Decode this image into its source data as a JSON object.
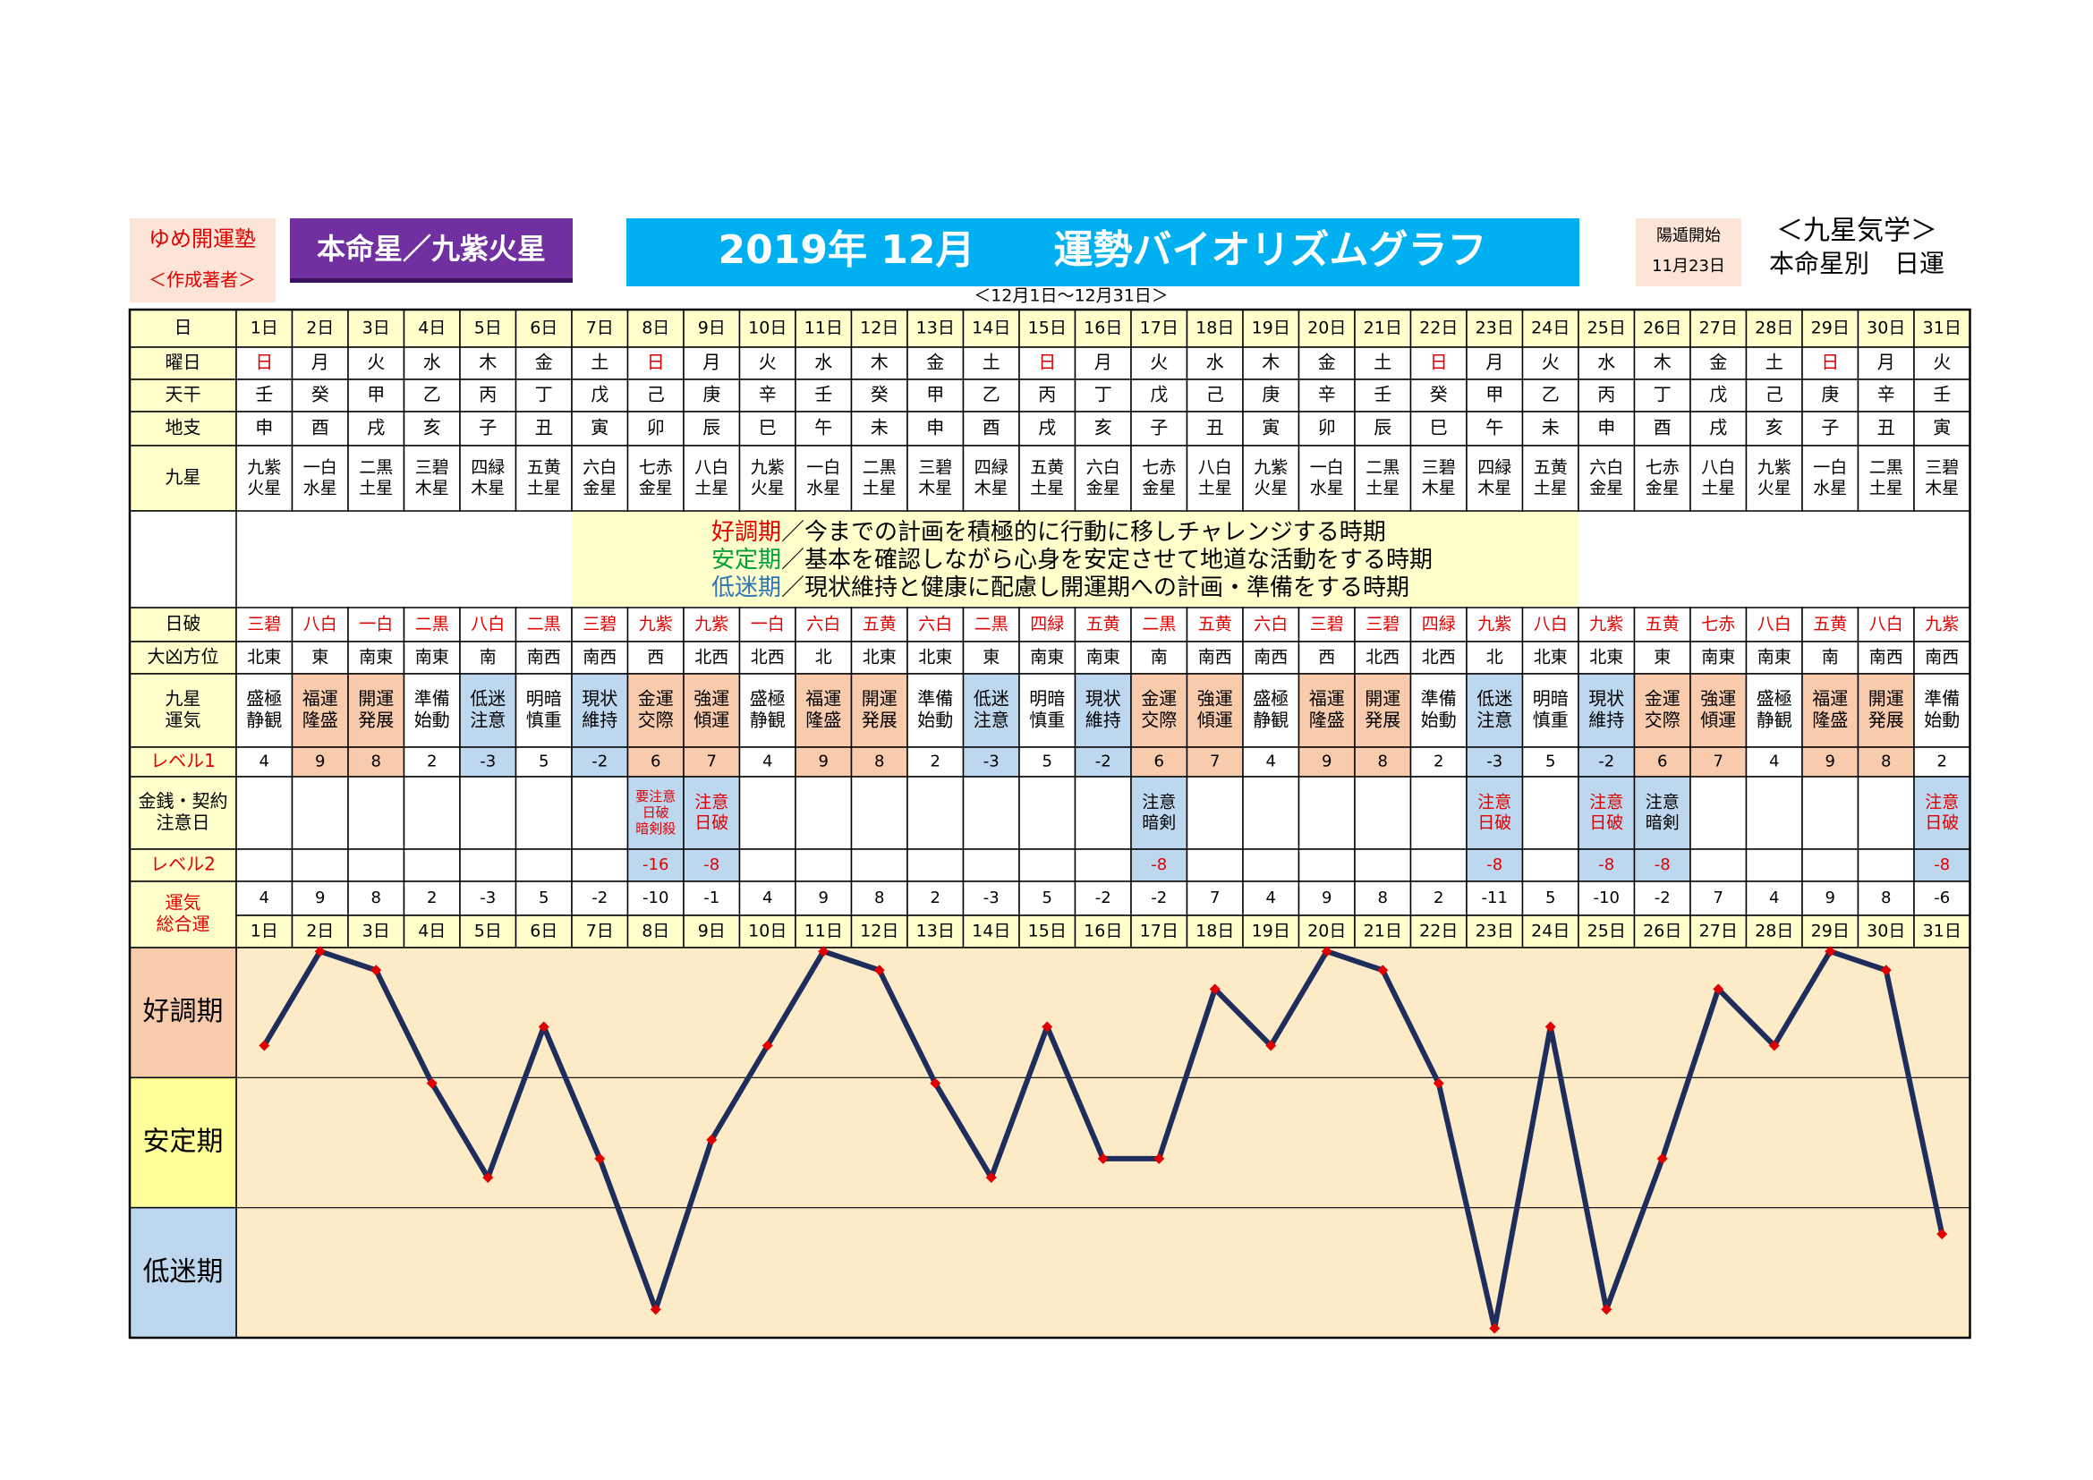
{
  "header": {
    "school": "ゆめ開運塾",
    "author": "＜作成著者＞",
    "star": "本命星／九紫火星",
    "title": "2019年 12月　　運勢バイオリズムグラフ",
    "yoton_label": "陽遁開始",
    "yoton_date": "11月23日",
    "system": "＜九星気学＞",
    "system_sub": "本命星別　日運",
    "period": "＜12月1日～12月31日＞"
  },
  "table": {
    "row_labels": [
      [
        "日"
      ],
      [
        "曜日"
      ],
      [
        "天干"
      ],
      [
        "地支"
      ],
      [
        "九星"
      ],
      [
        "日破"
      ],
      [
        "大凶方位"
      ],
      [
        "九星",
        "運気"
      ],
      [
        "レベル1"
      ],
      [
        "金銭・契約",
        "注意日"
      ],
      [
        "レベル2"
      ],
      [
        "運気",
        "総合運"
      ]
    ],
    "weekdays": [
      "日",
      "月",
      "火",
      "水",
      "木",
      "金",
      "土",
      "日",
      "月",
      "火",
      "水",
      "木",
      "金",
      "土",
      "日",
      "月",
      "火",
      "水",
      "木",
      "金",
      "土",
      "日",
      "月",
      "火",
      "水",
      "木",
      "金",
      "土",
      "日",
      "月",
      "火"
    ],
    "red_weekday": "日",
    "stems": [
      "壬",
      "癸",
      "甲",
      "乙",
      "丙",
      "丁",
      "戊",
      "己",
      "庚",
      "辛",
      "壬",
      "癸",
      "甲",
      "乙",
      "丙",
      "丁",
      "戊",
      "己",
      "庚",
      "辛",
      "壬",
      "癸",
      "甲",
      "乙",
      "丙",
      "丁",
      "戊",
      "己",
      "庚",
      "辛",
      "壬"
    ],
    "branches": [
      "申",
      "酉",
      "戌",
      "亥",
      "子",
      "丑",
      "寅",
      "卯",
      "辰",
      "巳",
      "午",
      "未",
      "申",
      "酉",
      "戌",
      "亥",
      "子",
      "丑",
      "寅",
      "卯",
      "辰",
      "巳",
      "午",
      "未",
      "申",
      "酉",
      "戌",
      "亥",
      "子",
      "丑",
      "寅"
    ],
    "stars": [
      [
        "九紫",
        "火星"
      ],
      [
        "一白",
        "水星"
      ],
      [
        "二黒",
        "土星"
      ],
      [
        "三碧",
        "木星"
      ],
      [
        "四緑",
        "木星"
      ],
      [
        "五黄",
        "土星"
      ],
      [
        "六白",
        "金星"
      ],
      [
        "七赤",
        "金星"
      ],
      [
        "八白",
        "土星"
      ],
      [
        "九紫",
        "火星"
      ],
      [
        "一白",
        "水星"
      ],
      [
        "二黒",
        "土星"
      ],
      [
        "三碧",
        "木星"
      ],
      [
        "四緑",
        "木星"
      ],
      [
        "五黄",
        "土星"
      ],
      [
        "六白",
        "金星"
      ],
      [
        "七赤",
        "金星"
      ],
      [
        "八白",
        "土星"
      ],
      [
        "九紫",
        "火星"
      ],
      [
        "一白",
        "水星"
      ],
      [
        "二黒",
        "土星"
      ],
      [
        "三碧",
        "木星"
      ],
      [
        "四緑",
        "木星"
      ],
      [
        "五黄",
        "土星"
      ],
      [
        "六白",
        "金星"
      ],
      [
        "七赤",
        "金星"
      ],
      [
        "八白",
        "土星"
      ],
      [
        "九紫",
        "火星"
      ],
      [
        "一白",
        "水星"
      ],
      [
        "二黒",
        "土星"
      ],
      [
        "三碧",
        "木星"
      ]
    ],
    "day_break": [
      "三碧",
      "八白",
      "一白",
      "二黒",
      "八白",
      "二黒",
      "三碧",
      "九紫",
      "九紫",
      "一白",
      "六白",
      "五黄",
      "六白",
      "二黒",
      "四緑",
      "五黄",
      "二黒",
      "五黄",
      "六白",
      "三碧",
      "三碧",
      "四緑",
      "九紫",
      "八白",
      "九紫",
      "五黄",
      "七赤",
      "八白",
      "五黄",
      "八白",
      "九紫"
    ],
    "bad_direction": [
      "北東",
      "東",
      "南東",
      "南東",
      "南",
      "南西",
      "南西",
      "西",
      "北西",
      "北西",
      "北",
      "北東",
      "北東",
      "東",
      "南東",
      "南東",
      "南",
      "南西",
      "南西",
      "西",
      "北西",
      "北西",
      "北",
      "北東",
      "北東",
      "東",
      "南東",
      "南東",
      "南",
      "南西",
      "南西"
    ],
    "fortune": [
      [
        "盛極",
        "静観"
      ],
      [
        "福運",
        "隆盛"
      ],
      [
        "開運",
        "発展"
      ],
      [
        "準備",
        "始動"
      ],
      [
        "低迷",
        "注意"
      ],
      [
        "明暗",
        "慎重"
      ],
      [
        "現状",
        "維持"
      ],
      [
        "金運",
        "交際"
      ],
      [
        "強運",
        "傾運"
      ],
      [
        "盛極",
        "静観"
      ],
      [
        "福運",
        "隆盛"
      ],
      [
        "開運",
        "発展"
      ],
      [
        "準備",
        "始動"
      ],
      [
        "低迷",
        "注意"
      ],
      [
        "明暗",
        "慎重"
      ],
      [
        "現状",
        "維持"
      ],
      [
        "金運",
        "交際"
      ],
      [
        "強運",
        "傾運"
      ],
      [
        "盛極",
        "静観"
      ],
      [
        "福運",
        "隆盛"
      ],
      [
        "開運",
        "発展"
      ],
      [
        "準備",
        "始動"
      ],
      [
        "低迷",
        "注意"
      ],
      [
        "明暗",
        "慎重"
      ],
      [
        "現状",
        "維持"
      ],
      [
        "金運",
        "交際"
      ],
      [
        "強運",
        "傾運"
      ],
      [
        "盛極",
        "静観"
      ],
      [
        "福運",
        "隆盛"
      ],
      [
        "開運",
        "発展"
      ],
      [
        "準備",
        "始動"
      ]
    ],
    "level1": [
      4,
      9,
      8,
      2,
      -3,
      5,
      -2,
      6,
      7,
      4,
      9,
      8,
      2,
      -3,
      5,
      -2,
      6,
      7,
      4,
      9,
      8,
      2,
      -3,
      5,
      -2,
      6,
      7,
      4,
      9,
      8,
      2
    ],
    "caution": [
      null,
      null,
      null,
      null,
      null,
      null,
      null,
      {
        "lines": [
          "要注意",
          "日破",
          "暗剣殺"
        ],
        "color": "#e00000"
      },
      {
        "lines": [
          "注意",
          "日破"
        ],
        "color": "#e00000"
      },
      null,
      null,
      null,
      null,
      null,
      null,
      null,
      {
        "lines": [
          "注意",
          "暗剣"
        ],
        "color": "#000000"
      },
      null,
      null,
      null,
      null,
      null,
      {
        "lines": [
          "注意",
          "日破"
        ],
        "color": "#e00000"
      },
      null,
      {
        "lines": [
          "注意",
          "日破"
        ],
        "color": "#e00000"
      },
      {
        "lines": [
          "注意",
          "暗剣"
        ],
        "color": "#000000"
      },
      null,
      null,
      null,
      null,
      {
        "lines": [
          "注意",
          "日破"
        ],
        "color": "#e00000"
      }
    ],
    "level2": [
      null,
      null,
      null,
      null,
      null,
      null,
      null,
      -16,
      -8,
      null,
      null,
      null,
      null,
      null,
      null,
      null,
      -8,
      null,
      null,
      null,
      null,
      null,
      -8,
      null,
      -8,
      -8,
      null,
      null,
      null,
      null,
      -8
    ],
    "good_color": "#f8cbad",
    "low_color": "#bdd7ee"
  },
  "legend": [
    {
      "tag": "好調期",
      "text": "／今までの計画を積極的に行動に移しチャレンジする時期",
      "color": "#e00000"
    },
    {
      "tag": "安定期",
      "text": "／基本を確認しながら心身を安定させて地道な活動をする時期",
      "color": "#00a040"
    },
    {
      "tag": "低迷期",
      "text": "／現状維持と健康に配慮し開運期への計画・準備をする時期",
      "color": "#2e75b6"
    }
  ],
  "chart_data": {
    "type": "line",
    "categories": [
      "1日",
      "2日",
      "3日",
      "4日",
      "5日",
      "6日",
      "7日",
      "8日",
      "9日",
      "10日",
      "11日",
      "12日",
      "13日",
      "14日",
      "15日",
      "16日",
      "17日",
      "18日",
      "19日",
      "20日",
      "21日",
      "22日",
      "23日",
      "24日",
      "25日",
      "26日",
      "27日",
      "28日",
      "29日",
      "30日",
      "31日"
    ],
    "values": [
      4,
      9,
      8,
      2,
      -3,
      5,
      -2,
      -10,
      -1,
      4,
      9,
      8,
      2,
      -3,
      5,
      -2,
      -2,
      7,
      4,
      9,
      8,
      2,
      -11,
      5,
      -10,
      -2,
      7,
      4,
      9,
      8,
      -6
    ],
    "ylim": [
      -11.5,
      9.2
    ],
    "color": "#1f2d5c",
    "marker_color": "#e00000",
    "bands": [
      {
        "name": "好調期",
        "color": "#f8cbad"
      },
      {
        "name": "安定期",
        "color": "#ffff99"
      },
      {
        "name": "低迷期",
        "color": "#bdd7ee"
      }
    ]
  }
}
